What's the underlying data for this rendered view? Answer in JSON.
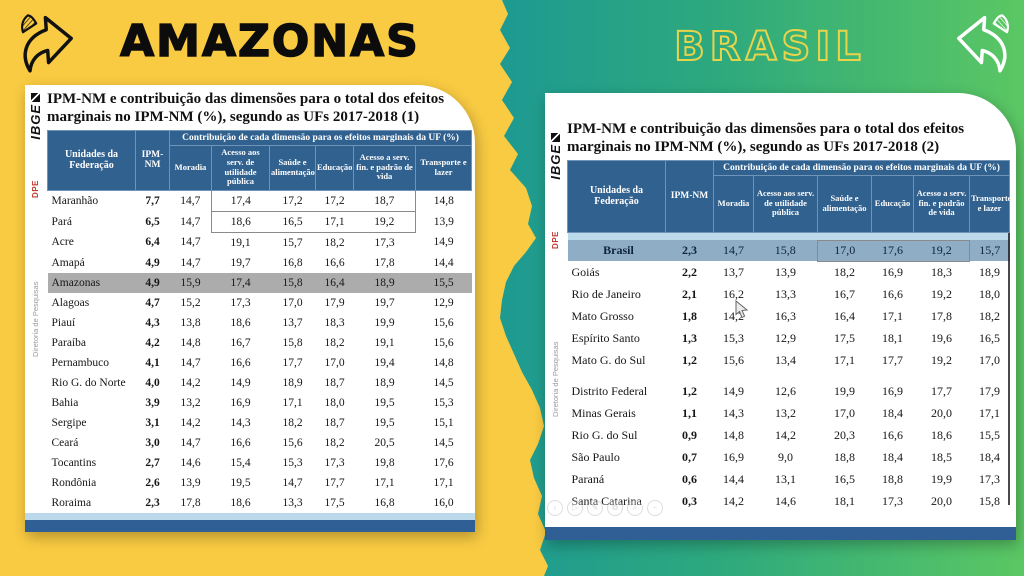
{
  "left_panel": {
    "heading": "AMAZONAS"
  },
  "right_panel": {
    "heading": "BRASIL"
  },
  "colors": {
    "yellow": "#F9CB42",
    "teal": "#1B9894",
    "green": "#5BC763",
    "header_blue": "#31618F",
    "footer_blue": "#2F5F94",
    "light_strip": "#BCD8EB",
    "gray_highlight": "#ACACAC",
    "brasil_row": "#8FAEC6",
    "brasil_outline": "#E8D44B"
  },
  "left_card": {
    "logo": "IBGE",
    "dpe": "DPE",
    "sidebar": "Diretoria de Pesquisas",
    "title": "IPM-NM e contribuição das dimensões para o total dos efeitos marginais no IPM-NM (%), segundo as UFs 2017-2018 (1)",
    "table": {
      "headers": {
        "uf": "Unidades da Federação",
        "ipm": "IPM-NM",
        "group": "Contribuição de cada dimensão para os efeitos marginais da UF (%)",
        "dims": [
          "Moradia",
          "Acesso aos serv. de utilidade pública",
          "Saúde e alimentação",
          "Educação",
          "Acesso a serv. fin. e padrão de vida",
          "Transporte e lazer"
        ]
      },
      "rows": [
        {
          "cells": [
            "Maranhão",
            "7,7",
            "14,7",
            "17,4",
            "17,2",
            "17,2",
            "18,7",
            "14,8"
          ],
          "box": [
            3,
            6
          ]
        },
        {
          "cells": [
            "Pará",
            "6,5",
            "14,7",
            "18,6",
            "16,5",
            "17,1",
            "19,2",
            "13,9"
          ],
          "box": [
            3,
            6
          ]
        },
        {
          "cells": [
            "Acre",
            "6,4",
            "14,7",
            "19,1",
            "15,7",
            "18,2",
            "17,3",
            "14,9"
          ]
        },
        {
          "cells": [
            "Amapá",
            "4,9",
            "14,7",
            "19,7",
            "16,8",
            "16,6",
            "17,8",
            "14,4"
          ]
        },
        {
          "cells": [
            "Amazonas",
            "4,9",
            "15,9",
            "17,4",
            "15,8",
            "16,4",
            "18,9",
            "15,5"
          ],
          "hl": "gray"
        },
        {
          "cells": [
            "Alagoas",
            "4,7",
            "15,2",
            "17,3",
            "17,0",
            "17,9",
            "19,7",
            "12,9"
          ]
        },
        {
          "cells": [
            "Piauí",
            "4,3",
            "13,8",
            "18,6",
            "13,7",
            "18,3",
            "19,9",
            "15,6"
          ]
        },
        {
          "cells": [
            "Paraíba",
            "4,2",
            "14,8",
            "16,7",
            "15,8",
            "18,2",
            "19,1",
            "15,6"
          ]
        },
        {
          "cells": [
            "Pernambuco",
            "4,1",
            "14,7",
            "16,6",
            "17,7",
            "17,0",
            "19,4",
            "14,8"
          ]
        },
        {
          "cells": [
            "Rio G. do Norte",
            "4,0",
            "14,2",
            "14,9",
            "18,9",
            "18,7",
            "18,9",
            "14,5"
          ]
        },
        {
          "cells": [
            "Bahia",
            "3,9",
            "13,2",
            "16,9",
            "17,1",
            "18,0",
            "19,5",
            "15,3"
          ]
        },
        {
          "cells": [
            "Sergipe",
            "3,1",
            "14,2",
            "14,3",
            "18,2",
            "18,7",
            "19,5",
            "15,1"
          ]
        },
        {
          "cells": [
            "Ceará",
            "3,0",
            "14,7",
            "16,6",
            "15,6",
            "18,2",
            "20,5",
            "14,5"
          ]
        },
        {
          "cells": [
            "Tocantins",
            "2,7",
            "14,6",
            "15,4",
            "15,3",
            "17,3",
            "19,8",
            "17,6"
          ]
        },
        {
          "cells": [
            "Rondônia",
            "2,6",
            "13,9",
            "19,5",
            "14,7",
            "17,7",
            "17,1",
            "17,1"
          ]
        },
        {
          "cells": [
            "Roraima",
            "2,3",
            "17,8",
            "18,6",
            "13,3",
            "17,5",
            "16,8",
            "16,0"
          ]
        }
      ]
    }
  },
  "right_card": {
    "logo": "IBGE",
    "dpe": "DPE",
    "sidebar": "Diretoria de Pesquisas",
    "title": "IPM-NM e contribuição das dimensões para o total dos efeitos marginais no IPM-NM (%), segundo as UFs 2017-2018 (2)",
    "table": {
      "headers": {
        "uf": "Unidades da Federação",
        "ipm": "IPM-NM",
        "group": "Contribuição de cada dimensão para os efeitos marginais da UF (%)",
        "dims": [
          "Moradia",
          "Acesso aos serv. de utilidade pública",
          "Saúde e alimentação",
          "Educação",
          "Acesso a serv. fin. e padrão de vida",
          "Transporte e lazer"
        ]
      },
      "rows": [
        {
          "cells": [
            "Brasil",
            "2,3",
            "14,7",
            "15,8",
            "17,0",
            "17,6",
            "19,2",
            "15,7"
          ],
          "hl": "blue",
          "box": [
            4,
            6
          ],
          "strip_before": true
        },
        {
          "cells": [
            "Goiás",
            "2,2",
            "13,7",
            "13,9",
            "18,2",
            "16,9",
            "18,3",
            "18,9"
          ]
        },
        {
          "cells": [
            "Rio de Janeiro",
            "2,1",
            "16,2",
            "13,3",
            "16,7",
            "16,6",
            "19,2",
            "18,0"
          ]
        },
        {
          "cells": [
            "Mato Grosso",
            "1,8",
            "14,2",
            "16,3",
            "16,4",
            "17,1",
            "17,8",
            "18,2"
          ]
        },
        {
          "cells": [
            "Espírito Santo",
            "1,3",
            "15,3",
            "12,9",
            "17,5",
            "18,1",
            "19,6",
            "16,5"
          ]
        },
        {
          "cells": [
            "Mato G. do Sul",
            "1,2",
            "15,6",
            "13,4",
            "17,1",
            "17,7",
            "19,2",
            "17,0"
          ]
        },
        {
          "cells": [
            "Distrito Federal",
            "1,2",
            "14,9",
            "12,6",
            "19,9",
            "16,9",
            "17,7",
            "17,9"
          ],
          "gap_before": true
        },
        {
          "cells": [
            "Minas Gerais",
            "1,1",
            "14,3",
            "13,2",
            "17,0",
            "18,4",
            "20,0",
            "17,1"
          ]
        },
        {
          "cells": [
            "Rio G. do Sul",
            "0,9",
            "14,8",
            "14,2",
            "20,3",
            "16,6",
            "18,6",
            "15,5"
          ]
        },
        {
          "cells": [
            "São Paulo",
            "0,7",
            "16,9",
            "9,0",
            "18,8",
            "18,4",
            "18,5",
            "18,4"
          ]
        },
        {
          "cells": [
            "Paraná",
            "0,6",
            "14,4",
            "13,1",
            "16,5",
            "18,8",
            "19,9",
            "17,3"
          ]
        },
        {
          "cells": [
            "Santa Catarina",
            "0,3",
            "14,2",
            "14,6",
            "18,1",
            "17,3",
            "20,0",
            "15,8"
          ]
        }
      ]
    }
  },
  "ghost_toolbar": [
    {
      "name": "chevron-left-icon",
      "glyph": "‹"
    },
    {
      "name": "play-icon",
      "glyph": "▷"
    },
    {
      "name": "pencil-icon",
      "glyph": "✎"
    },
    {
      "name": "copy-icon",
      "glyph": "⧉"
    },
    {
      "name": "magnifier-icon",
      "glyph": "⌕"
    },
    {
      "name": "more-icon",
      "glyph": "−"
    }
  ]
}
